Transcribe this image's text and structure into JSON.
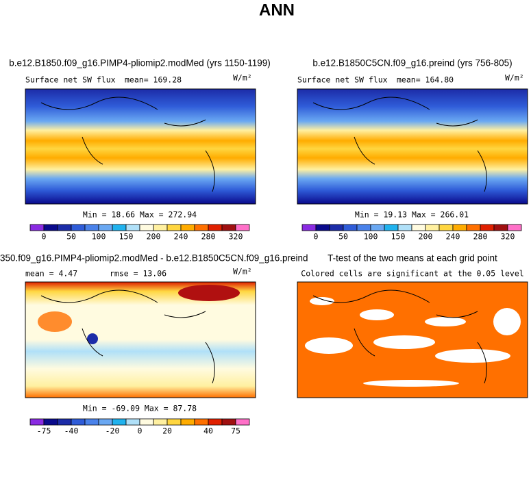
{
  "title": "ANN",
  "panels": [
    {
      "title": "b.e12.B1850.f09_g16.PIMP4-pliomip2.modMed (yrs 1150-1199)",
      "left_label": "Surface net SW flux",
      "right_label": "mean= 169.28",
      "units": "W/m²",
      "stats": "Min =   18.66 Max = 272.94",
      "colorbar": {
        "ticks": [
          0,
          50,
          100,
          150,
          200,
          240,
          280,
          320
        ],
        "colors": [
          "#8a2be2",
          "#0a0a8c",
          "#1c2ca8",
          "#2f5cd8",
          "#4a82ea",
          "#6aa8f2",
          "#20b2ee",
          "#b0e0f8",
          "#fffbe0",
          "#fff0a0",
          "#ffd640",
          "#ffac00",
          "#ff7000",
          "#e02000",
          "#a01010",
          "#ff70c8"
        ]
      }
    },
    {
      "title": "b.e12.B1850C5CN.f09_g16.preind (yrs 756-805)",
      "left_label": "Surface net SW flux",
      "right_label": "mean= 164.80",
      "units": "W/m²",
      "stats": "Min =   19.13 Max = 266.01",
      "colorbar": {
        "ticks": [
          0,
          50,
          100,
          150,
          200,
          240,
          280,
          320
        ],
        "colors": [
          "#8a2be2",
          "#0a0a8c",
          "#1c2ca8",
          "#2f5cd8",
          "#4a82ea",
          "#6aa8f2",
          "#20b2ee",
          "#b0e0f8",
          "#fffbe0",
          "#fff0a0",
          "#ffd640",
          "#ffac00",
          "#ff7000",
          "#e02000",
          "#a01010",
          "#ff70c8"
        ]
      }
    },
    {
      "title": "350.f09_g16.PIMP4-pliomip2.modMed - b.e12.B1850C5CN.f09_g16.preind",
      "left_label": "mean =    4.47",
      "right_label": "rmse =  13.06",
      "units": "W/m²",
      "stats": "Min = -69.09 Max =  87.78",
      "colorbar": {
        "ticks": [
          -75,
          -40,
          -20,
          0,
          20,
          40,
          75
        ],
        "colors": [
          "#8a2be2",
          "#0a0a8c",
          "#1c2ca8",
          "#2f5cd8",
          "#4a82ea",
          "#6aa8f2",
          "#20b2ee",
          "#b0e0f8",
          "#fffbe0",
          "#fff0a0",
          "#ffd640",
          "#ffac00",
          "#ff7000",
          "#e02000",
          "#a01010",
          "#ff70c8"
        ]
      }
    },
    {
      "title": "T-test of the two means at each grid point",
      "subtitle": "Colored cells are significant at the 0.05 level"
    }
  ]
}
